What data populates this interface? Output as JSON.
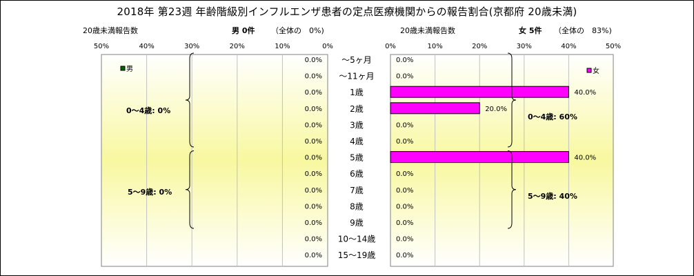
{
  "title": "2018年 第23週 年齢階級別インフルエンザ患者の定点医療機関からの報告割合(京都府 20歳未満)",
  "male": {
    "header_left": "20歳未満報告数",
    "header_count": "男 0件",
    "header_share": "（全体の　0%)",
    "legend": "男",
    "groups": [
      "0～4歳: 0%",
      "5～9歳: 0%"
    ],
    "value_labels": [
      "0.0%",
      "0.0%",
      "0.0%",
      "0.0%",
      "0.0%",
      "0.0%",
      "0.0%",
      "0.0%",
      "0.0%",
      "0.0%",
      "0.0%",
      "0.0%",
      "0.0%"
    ]
  },
  "female": {
    "header_left": "20歳未満報告数",
    "header_count": "女 5件",
    "header_share": "（全体の　83%)",
    "legend": "女",
    "groups": [
      "0～4歳: 60%",
      "5～9歳: 40%"
    ],
    "value_labels": [
      "0.0%",
      "0.0%",
      "40.0%",
      "20.0%",
      "0.0%",
      "0.0%",
      "40.0%",
      "0.0%",
      "0.0%",
      "0.0%",
      "0.0%",
      "0.0%",
      "0.0%"
    ]
  },
  "axis_ticks_left": [
    "50%",
    "40%",
    "30%",
    "20%",
    "10%",
    "0%"
  ],
  "axis_ticks_right": [
    "0%",
    "10%",
    "20%",
    "30%",
    "40%",
    "50%"
  ],
  "colors": {
    "male": "#006400",
    "female": "#FF00FF",
    "plot_bg_top": "#ffffff",
    "plot_bg_mid": "#f8f8a0"
  },
  "chart_data": {
    "type": "bar",
    "categories": [
      "～5ヶ月",
      "～11ヶ月",
      "1歳",
      "2歳",
      "3歳",
      "4歳",
      "5歳",
      "6歳",
      "7歳",
      "8歳",
      "9歳",
      "10～14歳",
      "15～19歳"
    ],
    "xlim": [
      0,
      50
    ],
    "grid": true,
    "series": [
      {
        "name": "男",
        "values": [
          0,
          0,
          0,
          0,
          0,
          0,
          0,
          0,
          0,
          0,
          0,
          0,
          0
        ]
      },
      {
        "name": "女",
        "values": [
          0,
          0,
          40,
          20,
          0,
          0,
          40,
          0,
          0,
          0,
          0,
          0,
          0
        ]
      }
    ]
  }
}
